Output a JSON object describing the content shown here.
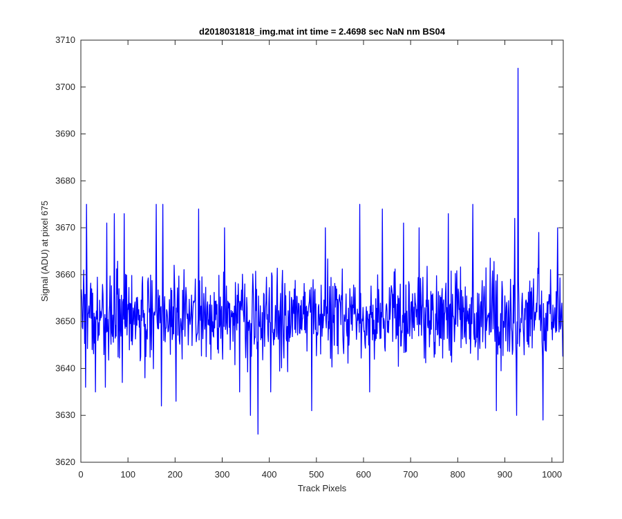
{
  "chart_data": {
    "type": "line",
    "title": "d2018031818_img.mat int time = 2.4698 sec  NaN nm BS04",
    "xlabel": "Track Pixels",
    "ylabel": "Signal (ADU) at pixel 675",
    "xlim": [
      0,
      1024
    ],
    "ylim": [
      3620,
      3710
    ],
    "xticks": [
      0,
      100,
      200,
      300,
      400,
      500,
      600,
      700,
      800,
      900,
      1000
    ],
    "yticks": [
      3620,
      3630,
      3640,
      3650,
      3660,
      3670,
      3680,
      3690,
      3700,
      3710
    ],
    "grid": false,
    "legend": "none",
    "series": [
      {
        "color": "#0000ff",
        "noise": {
          "count": 1024,
          "x_start": 1,
          "mean": 3651,
          "amplitude": 9,
          "seed": 20180318
        },
        "features": [
          {
            "x": 6,
            "y": 3661
          },
          {
            "x": 10,
            "y": 3636
          },
          {
            "x": 12,
            "y": 3675
          },
          {
            "x": 31,
            "y": 3635
          },
          {
            "x": 52,
            "y": 3636
          },
          {
            "x": 55,
            "y": 3671
          },
          {
            "x": 71,
            "y": 3673
          },
          {
            "x": 88,
            "y": 3637
          },
          {
            "x": 92,
            "y": 3673
          },
          {
            "x": 136,
            "y": 3638
          },
          {
            "x": 160,
            "y": 3675
          },
          {
            "x": 171,
            "y": 3632
          },
          {
            "x": 174,
            "y": 3675
          },
          {
            "x": 202,
            "y": 3633
          },
          {
            "x": 250,
            "y": 3674
          },
          {
            "x": 305,
            "y": 3670
          },
          {
            "x": 337,
            "y": 3635
          },
          {
            "x": 360,
            "y": 3630
          },
          {
            "x": 376,
            "y": 3626
          },
          {
            "x": 403,
            "y": 3635
          },
          {
            "x": 490,
            "y": 3631
          },
          {
            "x": 519,
            "y": 3670
          },
          {
            "x": 592,
            "y": 3675
          },
          {
            "x": 613,
            "y": 3635
          },
          {
            "x": 640,
            "y": 3674
          },
          {
            "x": 685,
            "y": 3671
          },
          {
            "x": 718,
            "y": 3670
          },
          {
            "x": 780,
            "y": 3673
          },
          {
            "x": 832,
            "y": 3675
          },
          {
            "x": 882,
            "y": 3631
          },
          {
            "x": 921,
            "y": 3672
          },
          {
            "x": 925,
            "y": 3630
          },
          {
            "x": 928,
            "y": 3704
          },
          {
            "x": 972,
            "y": 3669
          },
          {
            "x": 981,
            "y": 3629
          },
          {
            "x": 1012,
            "y": 3670
          }
        ]
      }
    ]
  }
}
